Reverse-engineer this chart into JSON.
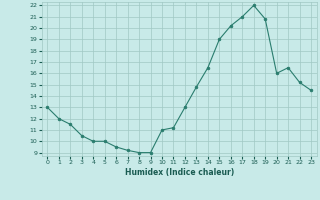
{
  "x": [
    0,
    1,
    2,
    3,
    4,
    5,
    6,
    7,
    8,
    9,
    10,
    11,
    12,
    13,
    14,
    15,
    16,
    17,
    18,
    19,
    20,
    21,
    22,
    23
  ],
  "y": [
    13,
    12,
    11.5,
    10.5,
    10,
    10,
    9.5,
    9.2,
    9,
    9,
    11,
    11.2,
    13,
    14.8,
    16.5,
    19,
    20.2,
    21,
    22,
    20.8,
    16,
    16.5,
    15.2,
    14.5
  ],
  "line_color": "#2a7d6e",
  "marker_color": "#2a7d6e",
  "bg_color": "#c8eae8",
  "grid_color": "#a0c8c4",
  "xlabel": "Humidex (Indice chaleur)",
  "xlabel_color": "#1a5c52",
  "tick_color": "#1a5c52",
  "ylim": [
    9,
    22
  ],
  "xlim": [
    -0.5,
    23.5
  ],
  "yticks": [
    9,
    10,
    11,
    12,
    13,
    14,
    15,
    16,
    17,
    18,
    19,
    20,
    21,
    22
  ],
  "xticks": [
    0,
    1,
    2,
    3,
    4,
    5,
    6,
    7,
    8,
    9,
    10,
    11,
    12,
    13,
    14,
    15,
    16,
    17,
    18,
    19,
    20,
    21,
    22,
    23
  ]
}
